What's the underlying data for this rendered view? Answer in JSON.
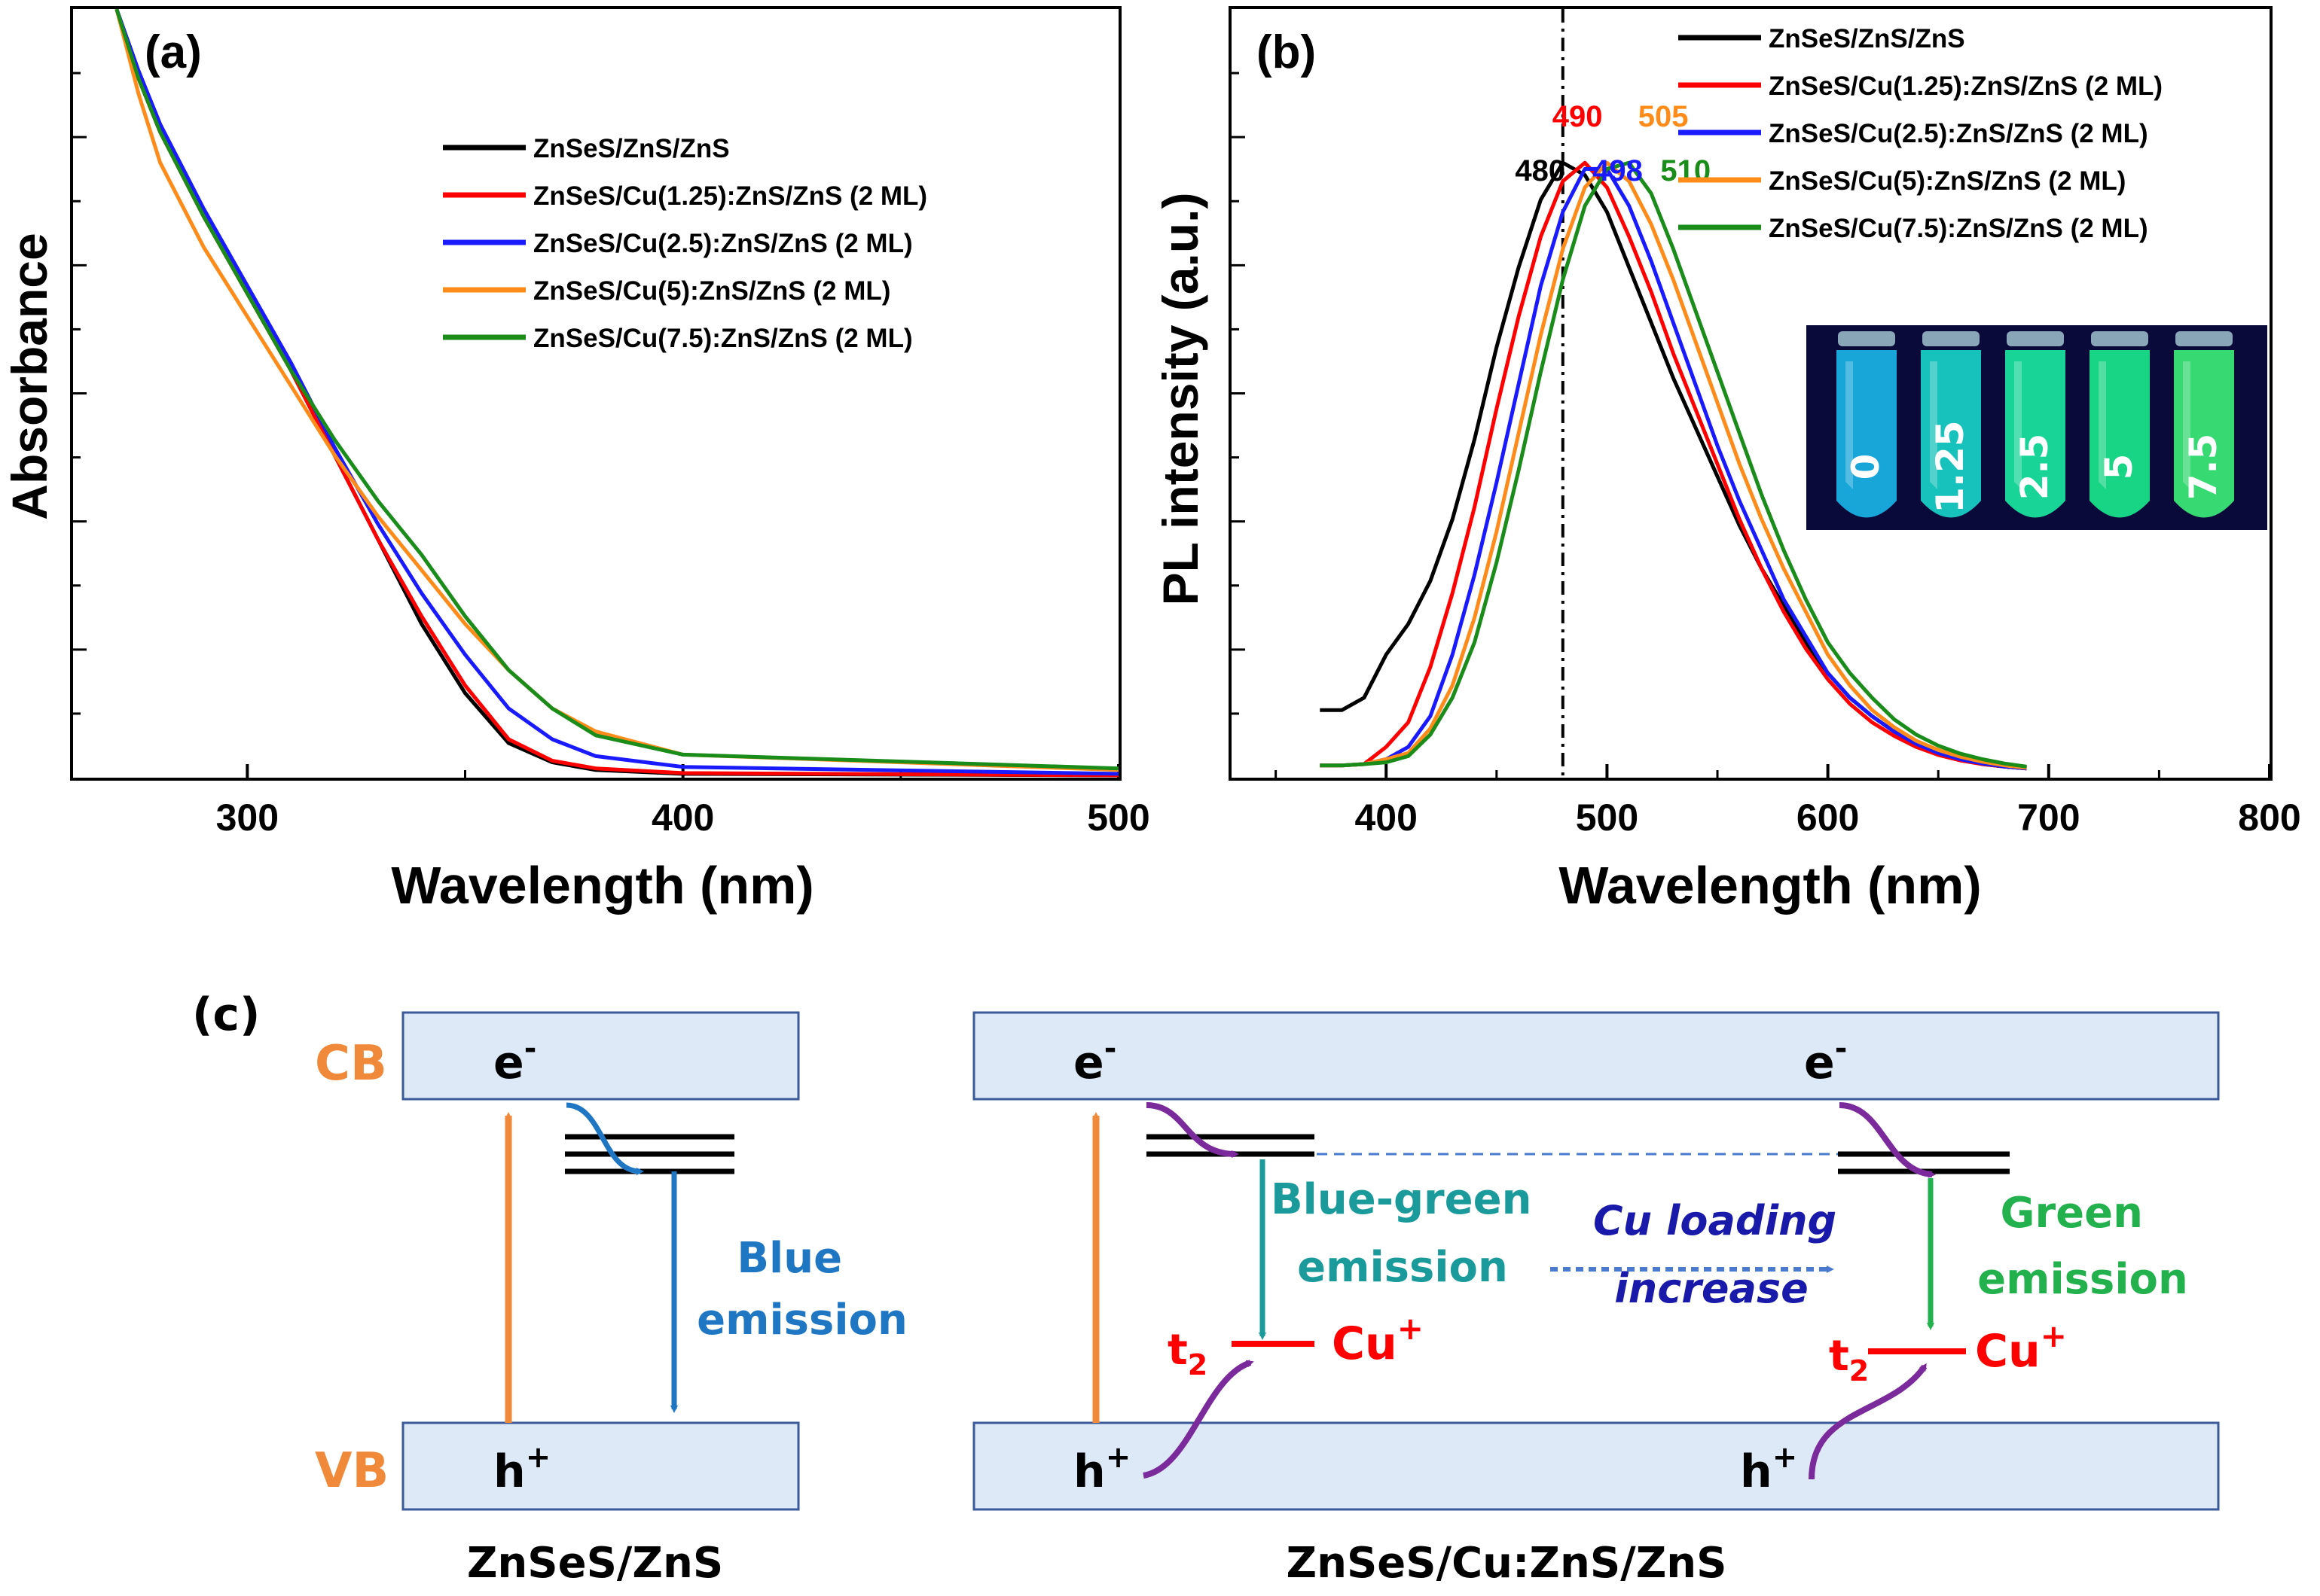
{
  "colors": {
    "black": "#000000",
    "red": "#ff0000",
    "blue": "#1a1aff",
    "orange": "#ff8c1a",
    "green": "#1a8c1a",
    "band_fill": "#dde9f6",
    "band_stroke": "#3a5a9a",
    "cb_vb_label": "#f08a3a",
    "blue_emission": "#1f77c4",
    "teal_emission": "#1a9a9a",
    "green_emission": "#22b14c",
    "purple": "#7a2a9a",
    "cu_red": "#ff0000",
    "navy_text": "#1a1aaa"
  },
  "chart_data": [
    {
      "id": "a",
      "type": "line",
      "panel_label": "(a)",
      "xlabel": "Wavelength (nm)",
      "ylabel": "Absorbance",
      "xlim": [
        260,
        500
      ],
      "ylim": [
        0,
        1.0
      ],
      "xticks": [
        300,
        400,
        500
      ],
      "series": [
        {
          "name": "ZnSeS/ZnS/ZnS",
          "color": "#000000",
          "x": [
            270,
            275,
            280,
            290,
            300,
            310,
            320,
            330,
            340,
            350,
            360,
            370,
            380,
            400,
            500
          ],
          "y": [
            1.0,
            0.91,
            0.84,
            0.73,
            0.63,
            0.53,
            0.42,
            0.31,
            0.2,
            0.11,
            0.045,
            0.02,
            0.01,
            0.005,
            0.003
          ]
        },
        {
          "name": "ZnSeS/Cu(1.25):ZnS/ZnS (2 ML)",
          "color": "#ff0000",
          "x": [
            270,
            275,
            280,
            290,
            300,
            310,
            320,
            330,
            340,
            350,
            360,
            370,
            380,
            400,
            500
          ],
          "y": [
            1.0,
            0.91,
            0.84,
            0.73,
            0.63,
            0.53,
            0.42,
            0.31,
            0.21,
            0.12,
            0.05,
            0.022,
            0.012,
            0.006,
            0.003
          ]
        },
        {
          "name": "ZnSeS/Cu(2.5):ZnS/ZnS (2 ML)",
          "color": "#1a1aff",
          "x": [
            270,
            275,
            280,
            290,
            300,
            310,
            320,
            330,
            340,
            350,
            360,
            370,
            380,
            400,
            500
          ],
          "y": [
            1.0,
            0.92,
            0.85,
            0.74,
            0.64,
            0.54,
            0.43,
            0.33,
            0.24,
            0.16,
            0.09,
            0.05,
            0.028,
            0.014,
            0.005
          ]
        },
        {
          "name": "ZnSeS/Cu(5):ZnS/ZnS (2 ML)",
          "color": "#ff8c1a",
          "x": [
            270,
            275,
            280,
            290,
            300,
            310,
            320,
            330,
            340,
            350,
            360,
            370,
            380,
            400,
            500
          ],
          "y": [
            1.0,
            0.89,
            0.8,
            0.69,
            0.6,
            0.51,
            0.42,
            0.34,
            0.27,
            0.2,
            0.14,
            0.09,
            0.06,
            0.03,
            0.01
          ]
        },
        {
          "name": "ZnSeS/Cu(7.5):ZnS/ZnS (2 ML)",
          "color": "#1a8c1a",
          "x": [
            270,
            275,
            280,
            290,
            300,
            310,
            320,
            330,
            340,
            350,
            360,
            370,
            380,
            400,
            500
          ],
          "y": [
            1.0,
            0.91,
            0.84,
            0.73,
            0.63,
            0.53,
            0.44,
            0.36,
            0.29,
            0.21,
            0.14,
            0.09,
            0.055,
            0.03,
            0.012
          ]
        }
      ]
    },
    {
      "id": "b",
      "type": "line",
      "panel_label": "(b)",
      "xlabel": "Wavelength (nm)",
      "ylabel": "PL intensity (a.u.)",
      "xlim": [
        330,
        800
      ],
      "ylim": [
        0,
        1.25
      ],
      "xticks": [
        400,
        500,
        600,
        700,
        800
      ],
      "vline_x": 480,
      "peak_labels": [
        {
          "text": "480",
          "x": 480,
          "color": "#000000"
        },
        {
          "text": "490",
          "x": 490,
          "color": "#ff0000"
        },
        {
          "text": "498",
          "x": 498,
          "color": "#1a1aff"
        },
        {
          "text": "505",
          "x": 505,
          "color": "#ff8c1a"
        },
        {
          "text": "510",
          "x": 510,
          "color": "#1a8c1a"
        }
      ],
      "series": [
        {
          "name": "ZnSeS/ZnS/ZnS",
          "color": "#000000",
          "peak": 480,
          "x": [
            370,
            380,
            390,
            400,
            410,
            420,
            430,
            440,
            450,
            460,
            470,
            480,
            490,
            500,
            510,
            520,
            530,
            540,
            550,
            560,
            570,
            580,
            590,
            600,
            610,
            620,
            630,
            640,
            650,
            660,
            670,
            680,
            690
          ],
          "y": [
            0.11,
            0.11,
            0.13,
            0.2,
            0.25,
            0.32,
            0.42,
            0.55,
            0.7,
            0.83,
            0.94,
            1.0,
            0.98,
            0.92,
            0.83,
            0.74,
            0.65,
            0.57,
            0.49,
            0.41,
            0.34,
            0.28,
            0.22,
            0.17,
            0.13,
            0.1,
            0.075,
            0.055,
            0.04,
            0.03,
            0.022,
            0.018,
            0.015
          ]
        },
        {
          "name": "ZnSeS/Cu(1.25):ZnS/ZnS (2 ML)",
          "color": "#ff0000",
          "peak": 490,
          "x": [
            370,
            380,
            390,
            400,
            410,
            420,
            430,
            440,
            450,
            460,
            470,
            480,
            490,
            500,
            510,
            520,
            530,
            540,
            550,
            560,
            570,
            580,
            590,
            600,
            610,
            620,
            630,
            640,
            650,
            660,
            670,
            680,
            690
          ],
          "y": [
            0.02,
            0.02,
            0.022,
            0.05,
            0.09,
            0.18,
            0.3,
            0.44,
            0.6,
            0.75,
            0.88,
            0.97,
            1.0,
            0.96,
            0.88,
            0.79,
            0.69,
            0.6,
            0.51,
            0.42,
            0.34,
            0.27,
            0.21,
            0.16,
            0.12,
            0.09,
            0.068,
            0.05,
            0.037,
            0.028,
            0.022,
            0.018,
            0.015
          ]
        },
        {
          "name": "ZnSeS/Cu(2.5):ZnS/ZnS (2 ML)",
          "color": "#1a1aff",
          "peak": 498,
          "x": [
            370,
            380,
            390,
            400,
            410,
            420,
            430,
            440,
            450,
            460,
            470,
            480,
            490,
            500,
            510,
            520,
            530,
            540,
            550,
            560,
            570,
            580,
            590,
            600,
            610,
            620,
            630,
            640,
            650,
            660,
            670,
            680,
            690
          ],
          "y": [
            0.02,
            0.02,
            0.022,
            0.03,
            0.05,
            0.1,
            0.2,
            0.33,
            0.48,
            0.64,
            0.8,
            0.92,
            0.99,
            0.99,
            0.93,
            0.84,
            0.74,
            0.64,
            0.54,
            0.45,
            0.37,
            0.29,
            0.23,
            0.17,
            0.13,
            0.1,
            0.075,
            0.055,
            0.04,
            0.03,
            0.023,
            0.018,
            0.015
          ]
        },
        {
          "name": "ZnSeS/Cu(5):ZnS/ZnS (2 ML)",
          "color": "#ff8c1a",
          "peak": 505,
          "x": [
            370,
            380,
            390,
            400,
            410,
            420,
            430,
            440,
            450,
            460,
            470,
            480,
            490,
            500,
            510,
            520,
            530,
            540,
            550,
            560,
            570,
            580,
            590,
            600,
            610,
            620,
            630,
            640,
            650,
            660,
            670,
            680,
            690
          ],
          "y": [
            0.02,
            0.02,
            0.022,
            0.03,
            0.04,
            0.08,
            0.15,
            0.26,
            0.4,
            0.56,
            0.72,
            0.86,
            0.96,
            1.0,
            0.97,
            0.9,
            0.81,
            0.71,
            0.61,
            0.51,
            0.42,
            0.34,
            0.27,
            0.2,
            0.15,
            0.11,
            0.082,
            0.06,
            0.045,
            0.034,
            0.026,
            0.02,
            0.016
          ]
        },
        {
          "name": "ZnSeS/Cu(7.5):ZnS/ZnS (2 ML)",
          "color": "#1a8c1a",
          "peak": 510,
          "x": [
            370,
            380,
            390,
            400,
            410,
            420,
            430,
            440,
            450,
            460,
            470,
            480,
            490,
            500,
            510,
            520,
            530,
            540,
            550,
            560,
            570,
            580,
            590,
            600,
            610,
            620,
            630,
            640,
            650,
            660,
            670,
            680,
            690
          ],
          "y": [
            0.02,
            0.02,
            0.022,
            0.025,
            0.035,
            0.07,
            0.13,
            0.22,
            0.35,
            0.5,
            0.66,
            0.81,
            0.93,
            0.99,
            1.0,
            0.95,
            0.86,
            0.76,
            0.66,
            0.56,
            0.46,
            0.37,
            0.29,
            0.22,
            0.17,
            0.13,
            0.095,
            0.07,
            0.052,
            0.039,
            0.03,
            0.023,
            0.018
          ]
        }
      ],
      "inset_photo": {
        "labels": [
          "0",
          "1.25",
          "2.5",
          "5",
          "7.5"
        ],
        "vial_colors": [
          "#1ab4e6",
          "#1ad2c8",
          "#1ae6a0",
          "#1ae68c",
          "#3cec78"
        ]
      }
    }
  ],
  "diagram": {
    "panel_label": "(c)",
    "cb_label": "CB",
    "vb_label": "VB",
    "electron": "e",
    "electron_sup": "-",
    "hole": "h",
    "hole_sup": "+",
    "left_caption": "ZnSeS/ZnS",
    "right_caption": "ZnSeS/Cu:ZnS/ZnS",
    "blue_emission_1": "Blue",
    "blue_emission_2": "emission",
    "bluegreen_emission_1": "Blue-green",
    "bluegreen_emission_2": "emission",
    "green_emission_1": "Green",
    "green_emission_2": "emission",
    "cu_loading_1": "Cu loading",
    "cu_loading_2": "increase",
    "t2_base": "t",
    "t2_sub": "2",
    "cu_base": "Cu",
    "cu_sup": "+"
  }
}
